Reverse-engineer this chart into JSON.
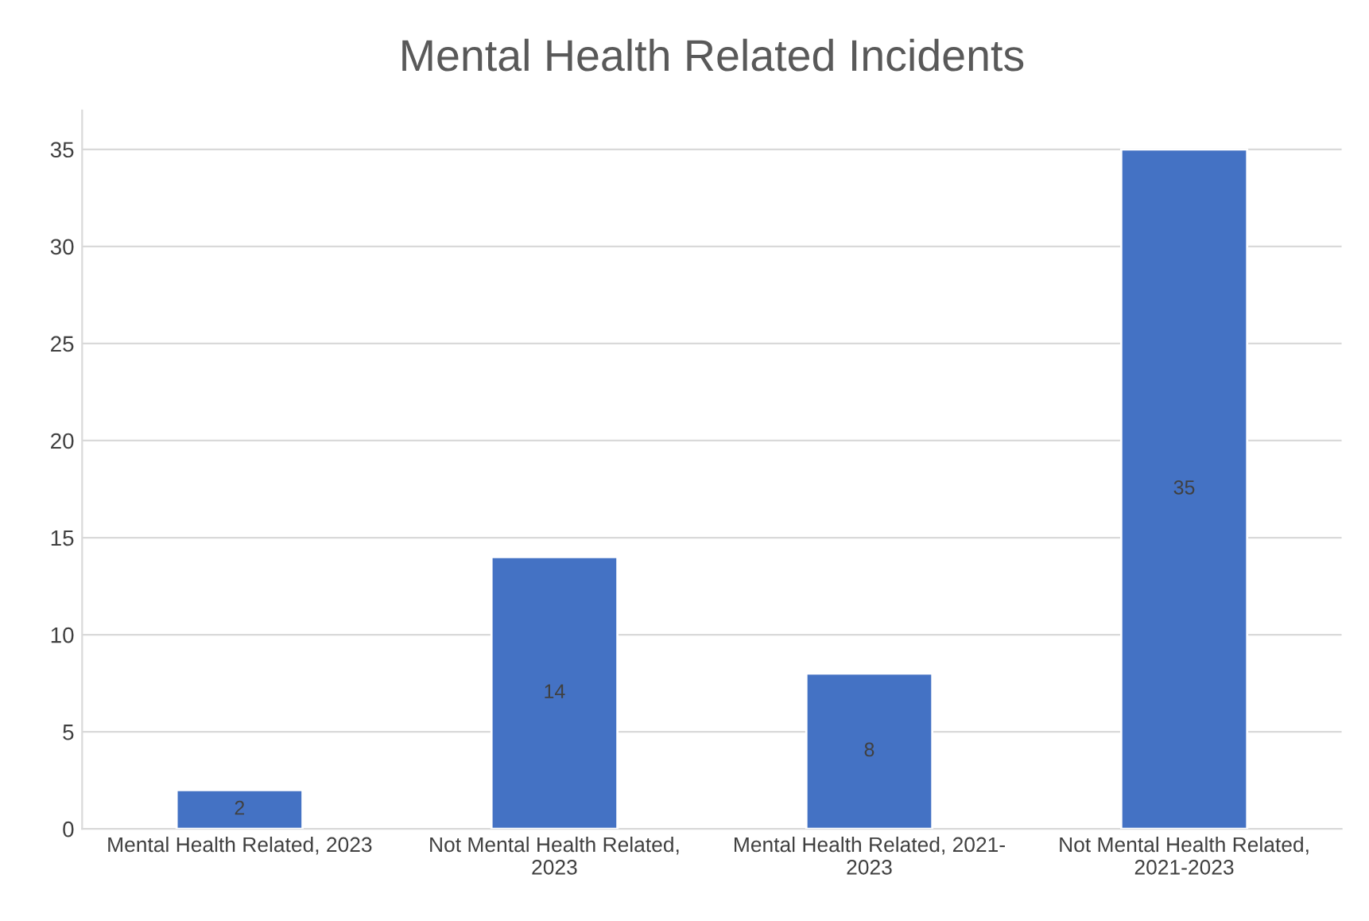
{
  "chart_data": {
    "type": "bar",
    "title": "Mental Health Related Incidents",
    "categories": [
      "Mental Health Related, 2023",
      "Not Mental Health Related,\n2023",
      "Mental Health Related, 2021-\n2023",
      "Not Mental Health Related,\n2021-2023"
    ],
    "values": [
      2,
      14,
      8,
      35
    ],
    "color": "#4472c4",
    "ylim": [
      0,
      37
    ],
    "yticks": [
      0,
      5,
      10,
      15,
      20,
      25,
      30,
      35
    ],
    "grid": "y",
    "data_labels": true
  }
}
